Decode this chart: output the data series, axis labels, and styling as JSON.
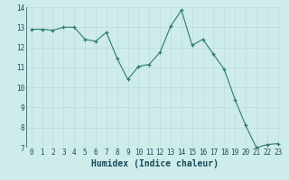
{
  "x": [
    0,
    1,
    2,
    3,
    4,
    5,
    6,
    7,
    8,
    9,
    10,
    11,
    12,
    13,
    14,
    15,
    16,
    17,
    18,
    19,
    20,
    21,
    22,
    23
  ],
  "y": [
    12.9,
    12.9,
    12.85,
    13.0,
    13.0,
    12.4,
    12.3,
    12.75,
    11.45,
    10.4,
    11.05,
    11.15,
    11.75,
    13.05,
    13.85,
    12.1,
    12.4,
    11.65,
    10.9,
    9.4,
    8.1,
    7.0,
    7.15,
    7.2
  ],
  "line_color": "#2d7a6e",
  "marker": "+",
  "marker_size": 3.5,
  "bg_color": "#ceecea",
  "grid_color": "#b8d8d5",
  "xlabel": "Humidex (Indice chaleur)",
  "ylim": [
    7,
    14
  ],
  "xlim": [
    -0.5,
    23.5
  ],
  "yticks": [
    7,
    8,
    9,
    10,
    11,
    12,
    13,
    14
  ],
  "xticks": [
    0,
    1,
    2,
    3,
    4,
    5,
    6,
    7,
    8,
    9,
    10,
    11,
    12,
    13,
    14,
    15,
    16,
    17,
    18,
    19,
    20,
    21,
    22,
    23
  ],
  "tick_label_size": 5.5,
  "xlabel_size": 7.0,
  "label_color": "#1a4a5a"
}
